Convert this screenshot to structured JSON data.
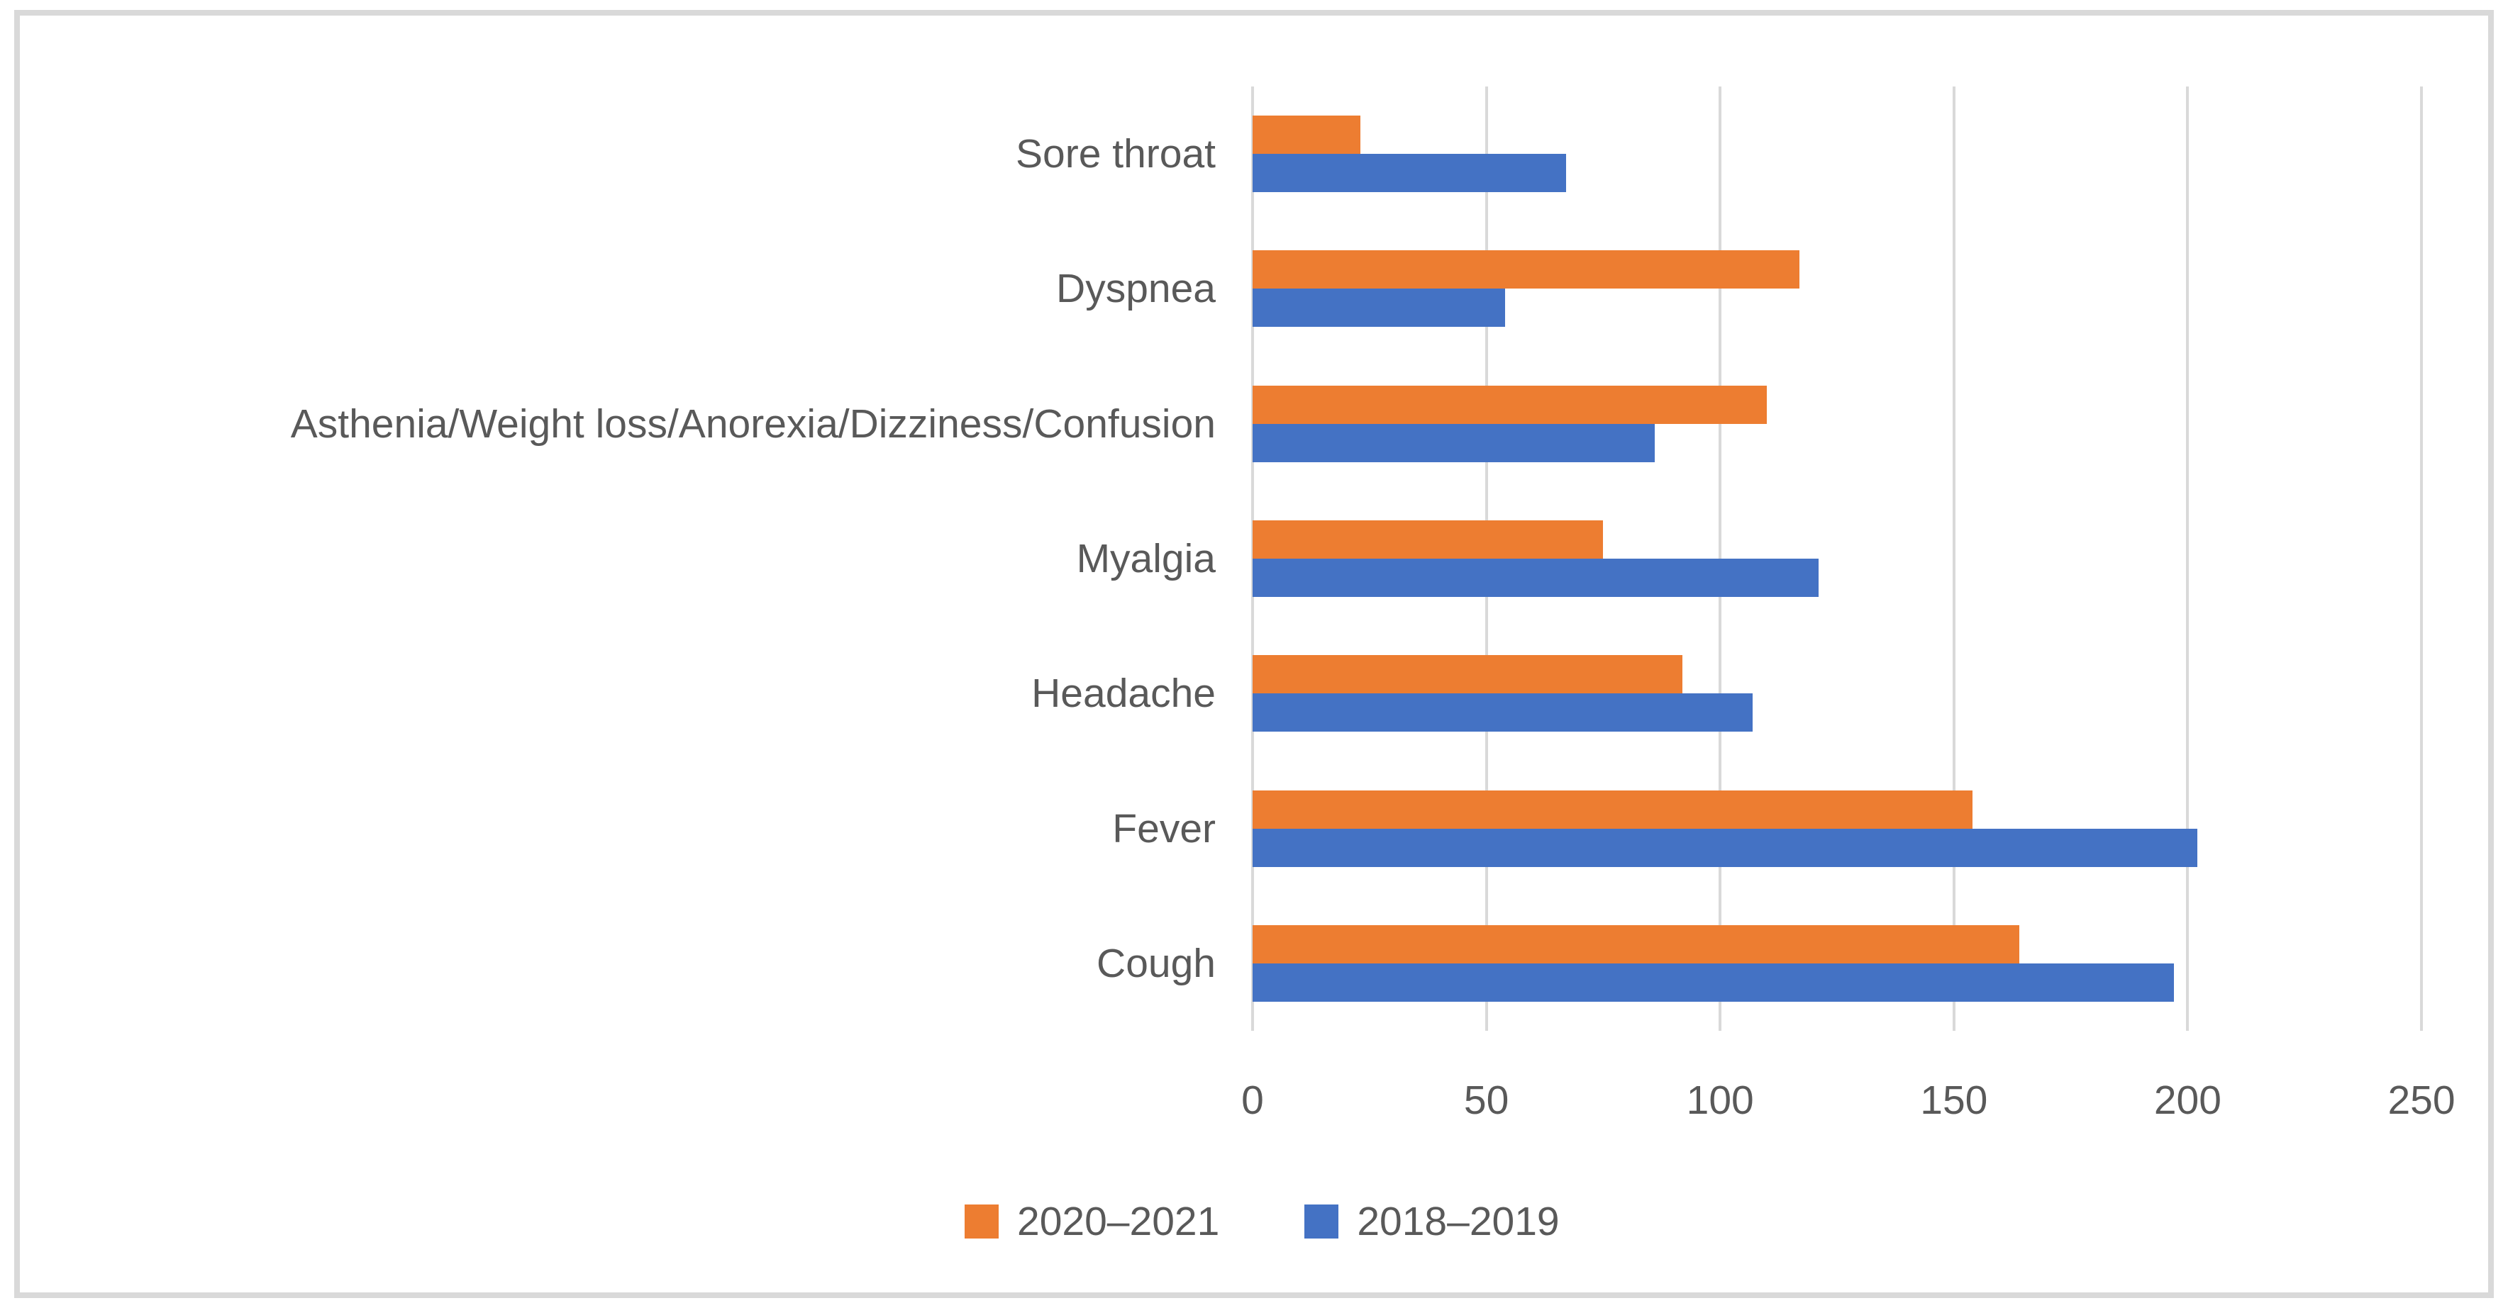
{
  "chart_data": {
    "type": "bar",
    "orientation": "horizontal",
    "title": "",
    "xlabel": "",
    "ylabel": "",
    "categories": [
      "Sore throat",
      "Dyspnea",
      "Asthenia/Weight loss/Anorexia/Dizziness/Confusion",
      "Myalgia",
      "Headache",
      "Fever",
      "Cough"
    ],
    "series": [
      {
        "name": "2020–2021",
        "color": "#ED7D31",
        "values": [
          23,
          117,
          110,
          75,
          92,
          154,
          164
        ]
      },
      {
        "name": "2018–2019",
        "color": "#4472C4",
        "values": [
          67,
          54,
          86,
          121,
          107,
          202,
          197
        ]
      }
    ],
    "xlim": [
      0,
      250
    ],
    "ticks": [
      0,
      50,
      100,
      150,
      200,
      250
    ],
    "grid": "vertical-gridlines-on",
    "legend_position": "bottom"
  },
  "colors": {
    "background": "#FFFFFF",
    "gridline": "#D9D9D9",
    "frame_border": "#D9D9D9",
    "text": "#595959",
    "series_2020_2021": "#ED7D31",
    "series_2018_2019": "#4472C4"
  }
}
